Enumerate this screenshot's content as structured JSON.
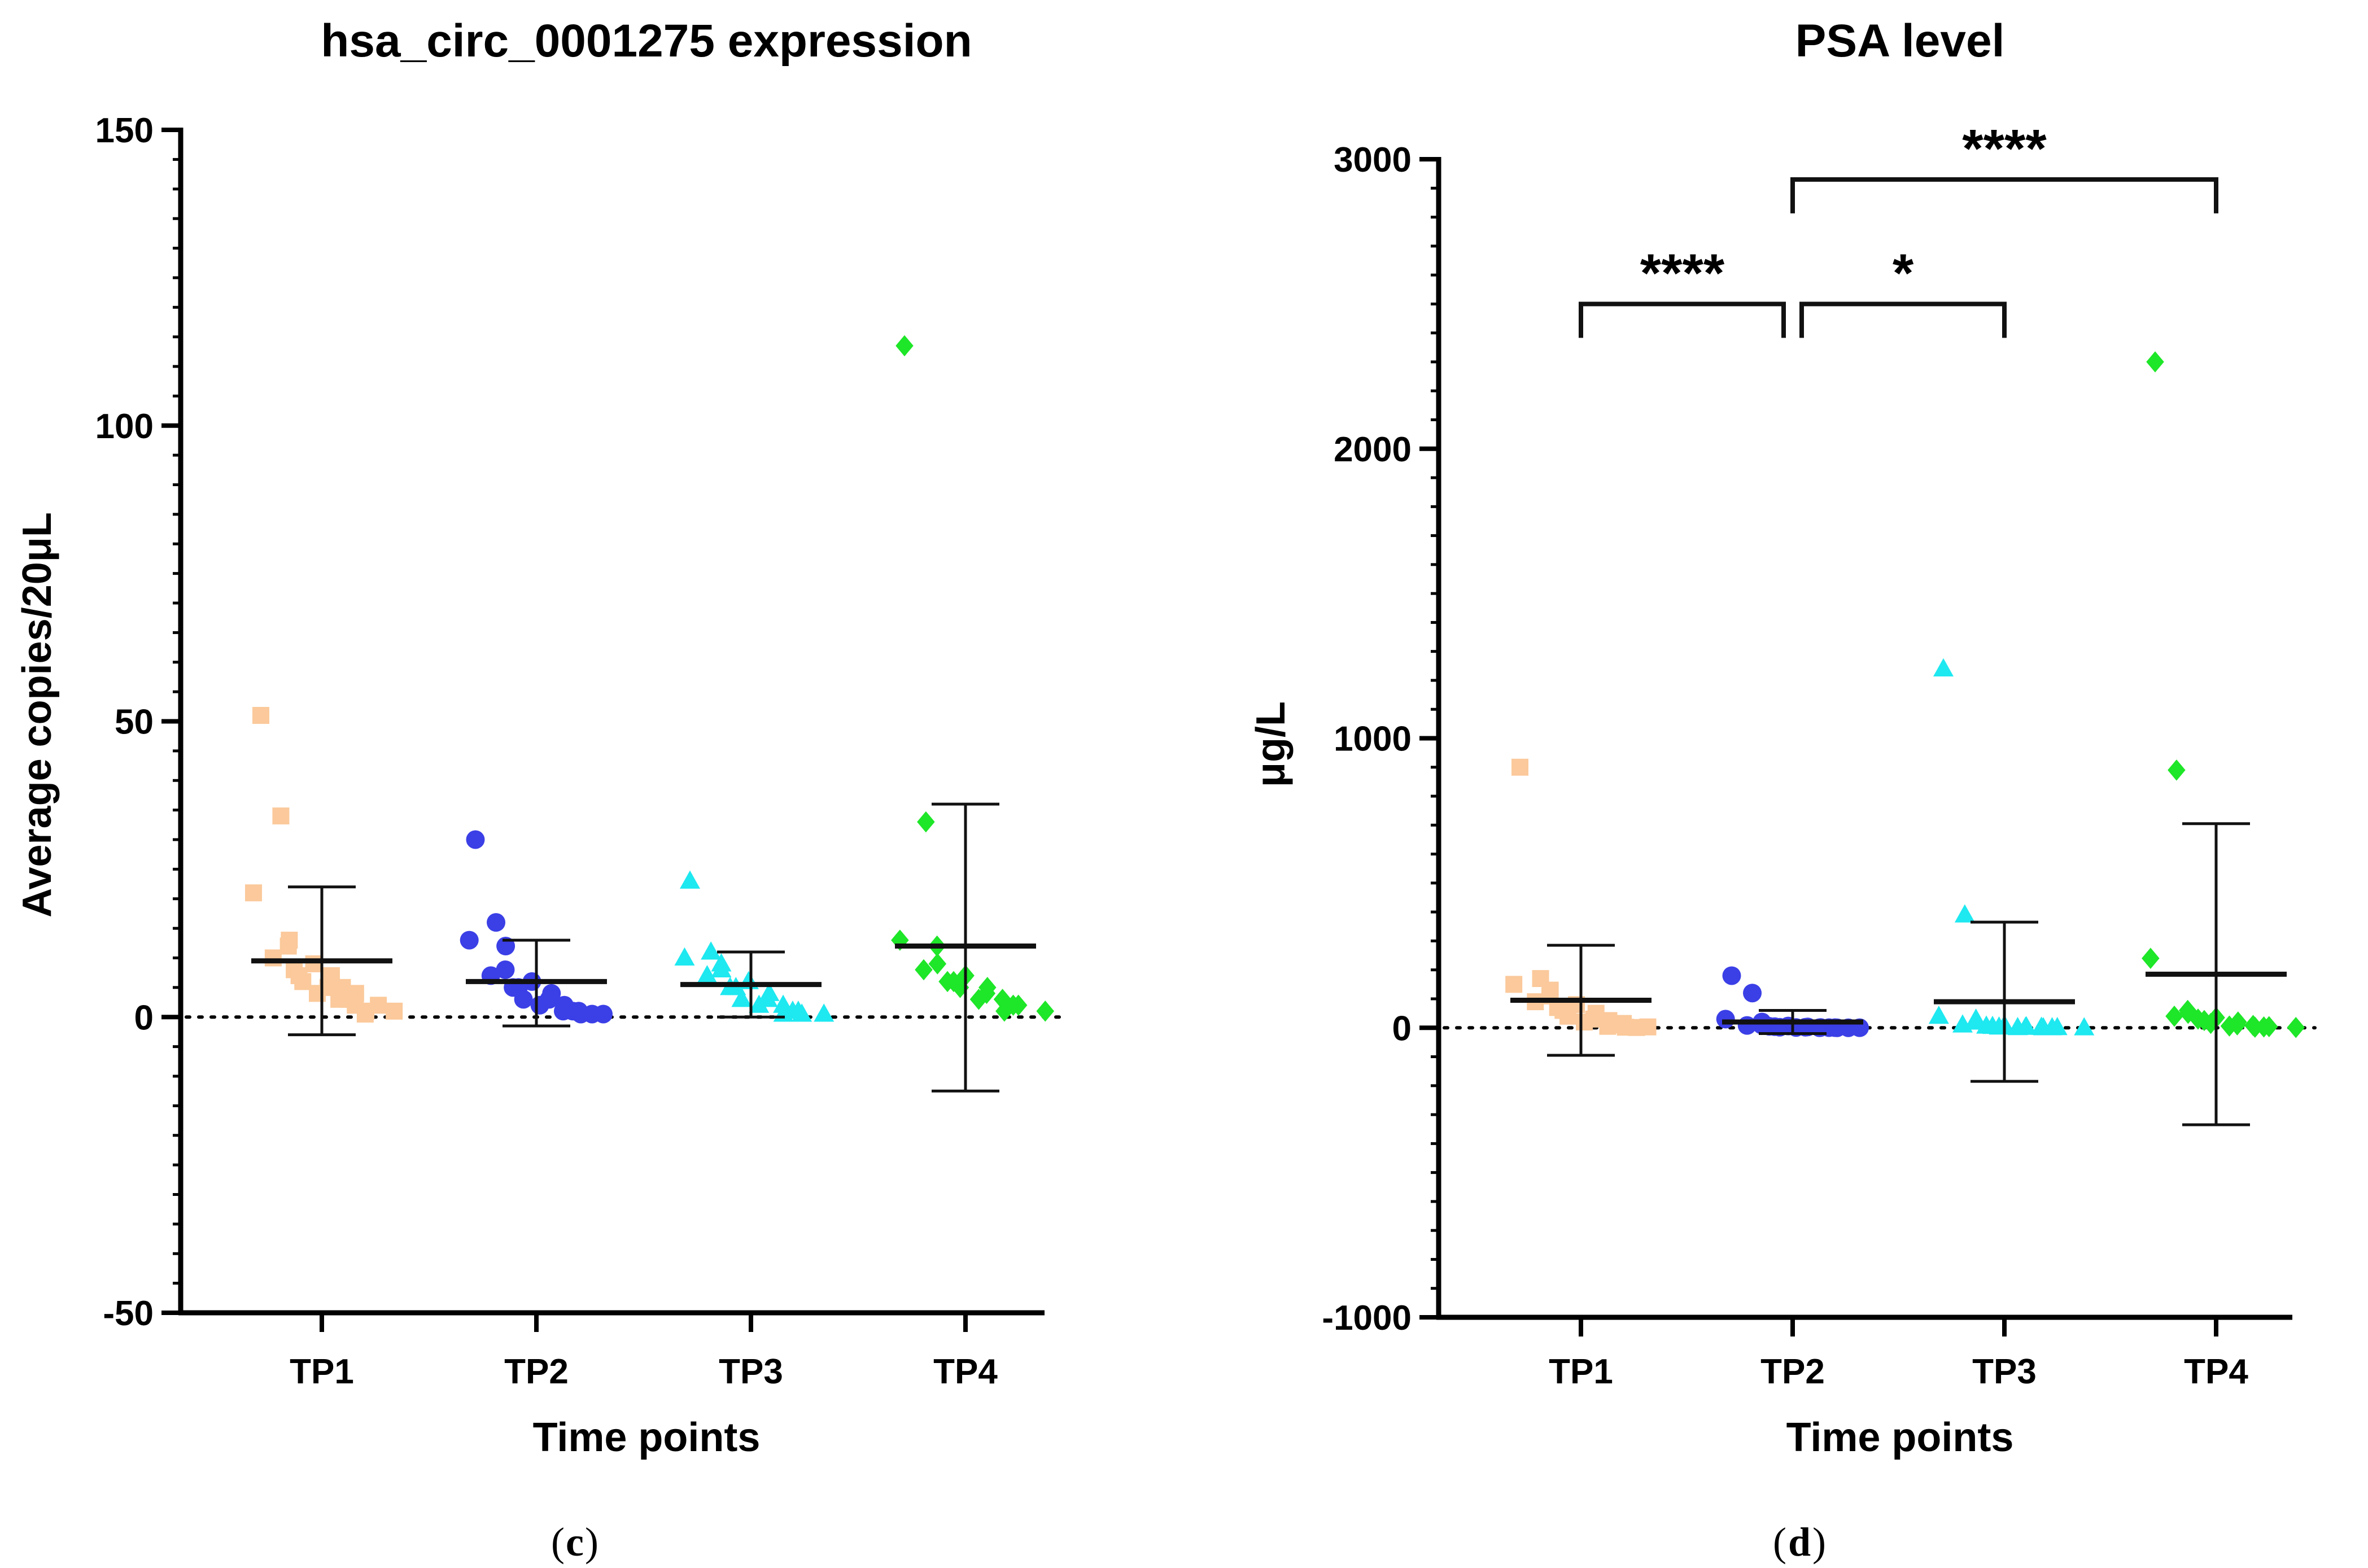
{
  "chart_data": [
    {
      "type": "scatter",
      "title": "hsa_circ_0001275 expression",
      "xlabel": "Time points",
      "ylabel": "Average copies/20μL",
      "ylim": [
        -50,
        150
      ],
      "yticks": [
        -50,
        0,
        50,
        100,
        150
      ],
      "categories": [
        "TP1",
        "TP2",
        "TP3",
        "TP4"
      ],
      "caption": {
        "open": "(",
        "letter": "c",
        "close": ")"
      },
      "zero_line": "dotted",
      "series": [
        {
          "category": "TP1",
          "marker": "square",
          "color": "#fbc99b",
          "values": [
            51,
            34,
            21,
            13,
            12,
            10,
            9,
            8,
            7,
            7,
            6,
            5,
            5,
            4,
            4,
            3,
            3,
            2,
            2,
            1,
            1,
            0.5
          ],
          "mean": 9.5,
          "sd_upper": 22,
          "sd_lower": -3
        },
        {
          "category": "TP2",
          "marker": "circle",
          "color": "#3b3fe6",
          "values": [
            30,
            16,
            13,
            12,
            8,
            7,
            6,
            5,
            5,
            4,
            3,
            3,
            2,
            2,
            1,
            1,
            1,
            0.5,
            0.5,
            0.5
          ],
          "mean": 6,
          "sd_upper": 13,
          "sd_lower": -1.5
        },
        {
          "category": "TP3",
          "marker": "triangle",
          "color": "#1ee8f0",
          "values": [
            23,
            11,
            10,
            9,
            8,
            7,
            6,
            5,
            5,
            4,
            3,
            3,
            2,
            2,
            1,
            1,
            0.5,
            0.5,
            0.5
          ],
          "mean": 5.5,
          "sd_upper": 11,
          "sd_lower": 0
        },
        {
          "category": "TP4",
          "marker": "diamond",
          "color": "#1ee628",
          "values": [
            113.5,
            33,
            13,
            12,
            9,
            8,
            7,
            6,
            6,
            5,
            5,
            4,
            3,
            3,
            2,
            2,
            1,
            1
          ],
          "mean": 12,
          "sd_upper": 36,
          "sd_lower": -12.5
        }
      ]
    },
    {
      "type": "scatter",
      "title": "PSA level",
      "xlabel": "Time points",
      "ylabel": "μg/L",
      "ylim": [
        -1000,
        3000
      ],
      "yticks": [
        -1000,
        0,
        1000,
        2000,
        3000
      ],
      "categories": [
        "TP1",
        "TP2",
        "TP3",
        "TP4"
      ],
      "caption": {
        "open": "(",
        "letter": "d",
        "close": ")"
      },
      "zero_line": "dotted",
      "series": [
        {
          "category": "TP1",
          "marker": "square",
          "color": "#fbc99b",
          "values": [
            900,
            170,
            150,
            130,
            110,
            90,
            80,
            70,
            60,
            50,
            40,
            30,
            25,
            20,
            15,
            10,
            5,
            3,
            2,
            1
          ],
          "mean": 95,
          "sd_upper": 285,
          "sd_lower": -95
        },
        {
          "category": "TP2",
          "marker": "circle",
          "color": "#3b3fe6",
          "values": [
            180,
            120,
            30,
            20,
            10,
            8,
            6,
            5,
            4,
            3,
            2,
            2,
            1,
            1,
            0.5,
            0.5,
            0.3,
            0.2,
            0.1,
            0.1
          ],
          "mean": 20,
          "sd_upper": 60,
          "sd_lower": -20
        },
        {
          "category": "TP3",
          "marker": "triangle",
          "color": "#1ee8f0",
          "values": [
            1240,
            390,
            40,
            30,
            20,
            10,
            8,
            6,
            5,
            4,
            3,
            2,
            2,
            1,
            1,
            0.5,
            0.5,
            0.2
          ],
          "mean": 90,
          "sd_upper": 365,
          "sd_lower": -185
        },
        {
          "category": "TP4",
          "marker": "diamond",
          "color": "#1ee628",
          "values": [
            2300,
            890,
            240,
            60,
            50,
            40,
            35,
            30,
            25,
            20,
            15,
            10,
            8,
            6,
            4,
            3,
            2,
            1
          ],
          "mean": 185,
          "sd_upper": 705,
          "sd_lower": -335
        }
      ],
      "significance": [
        {
          "from": "TP1",
          "to": "TP2",
          "label": "****",
          "level": 2500
        },
        {
          "from": "TP2",
          "to": "TP3",
          "label": "*",
          "level": 2500
        },
        {
          "from": "TP2",
          "to": "TP4",
          "label": "****",
          "level": 2930
        }
      ]
    }
  ]
}
